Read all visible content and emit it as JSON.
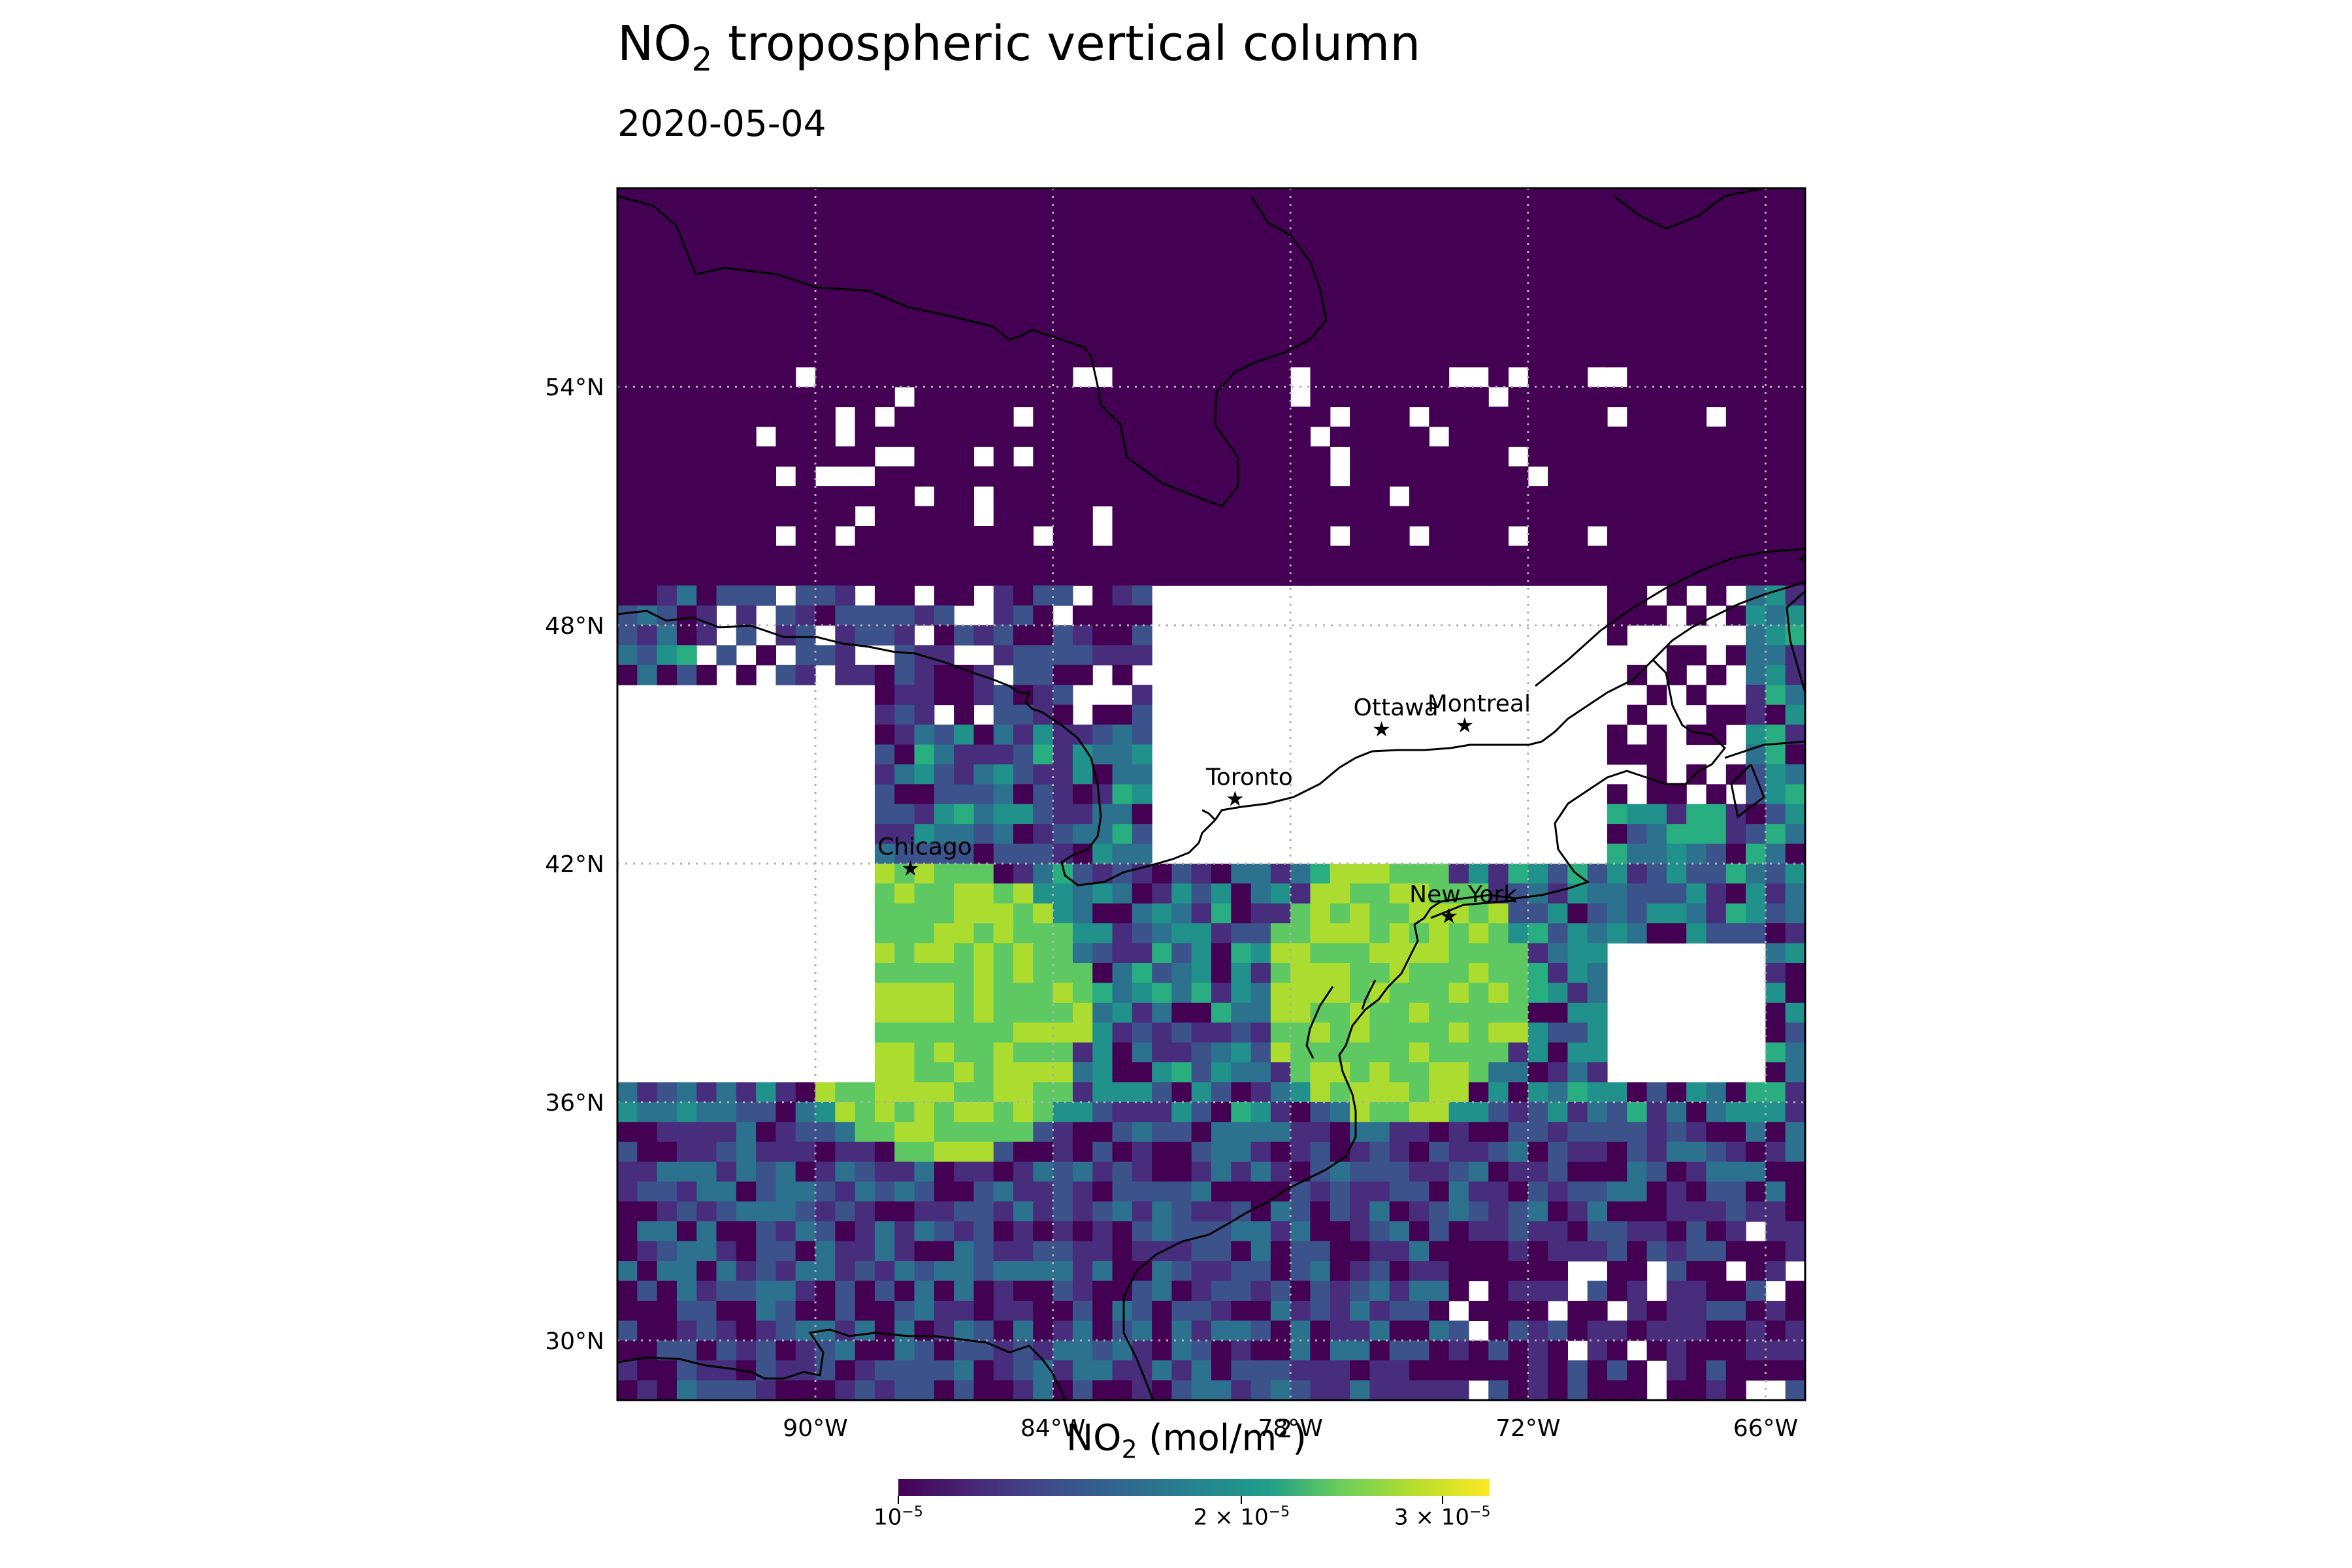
{
  "title": {
    "prefix": "NO",
    "subscript": "2",
    "suffix": " tropospheric vertical column"
  },
  "subtitle": "2020-05-04",
  "map": {
    "lon_range": [
      -95,
      -65
    ],
    "lat_range": [
      28.5,
      59
    ],
    "lat_ticks": [
      {
        "value": 54,
        "label": "54°N"
      },
      {
        "value": 48,
        "label": "48°N"
      },
      {
        "value": 42,
        "label": "42°N"
      },
      {
        "value": 36,
        "label": "36°N"
      },
      {
        "value": 30,
        "label": "30°N"
      }
    ],
    "lon_ticks": [
      {
        "value": -90,
        "label": "90°W"
      },
      {
        "value": -84,
        "label": "84°W"
      },
      {
        "value": -78,
        "label": "78°W"
      },
      {
        "value": -72,
        "label": "72°W"
      },
      {
        "value": -66,
        "label": "66°W"
      }
    ],
    "gridlines": true,
    "cities": [
      {
        "name": "Ottawa",
        "lon": -75.7,
        "lat": 45.4
      },
      {
        "name": "Montreal",
        "lon": -73.6,
        "lat": 45.5
      },
      {
        "name": "Toronto",
        "lon": -79.4,
        "lat": 43.65
      },
      {
        "name": "Chicago",
        "lon": -87.6,
        "lat": 41.9
      },
      {
        "name": "New York",
        "lon": -74.0,
        "lat": 40.7
      }
    ]
  },
  "colorbar": {
    "label": {
      "prefix": "NO",
      "subscript": "2",
      "middle": " (mol/m",
      "superscript": "2",
      "suffix": ")"
    },
    "scale": "log",
    "range": [
      1e-05,
      3.3e-05
    ],
    "colormap": "viridis",
    "ticks": [
      {
        "value": 1e-05,
        "base": "10",
        "exp": "−5"
      },
      {
        "value": 2e-05,
        "base": "2 × 10",
        "exp": "−5"
      },
      {
        "value": 3e-05,
        "base": "3 × 10",
        "exp": "−5"
      }
    ]
  }
}
